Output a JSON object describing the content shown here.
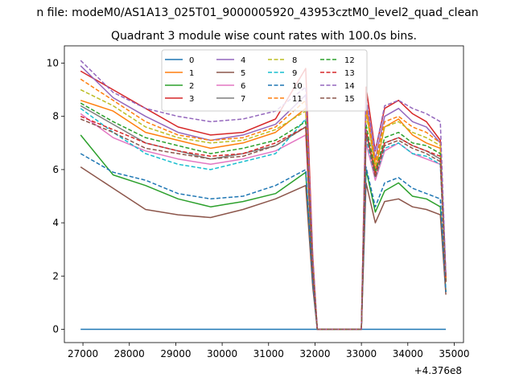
{
  "suptitle": "n file: modeM0/AS1A13_025T01_9000005920_43953cztM0_level2_quad_clean",
  "chart_data": {
    "type": "line",
    "title": "Quadrant 3 module wise count rates with 100.0s bins.",
    "xlabel": "",
    "ylabel": "",
    "x_offset_label": "+4.376e8",
    "xlim": [
      26600,
      35200
    ],
    "ylim": [
      -0.5,
      10.65
    ],
    "grid": false,
    "legend_position": "upper-center",
    "x_ticks": [
      27000,
      28000,
      29000,
      30000,
      31000,
      32000,
      33000,
      34000,
      35000
    ],
    "x_tick_labels": [
      "27000",
      "28000",
      "29000",
      "30000",
      "31000",
      "32000",
      "33000",
      "34000",
      "35000"
    ],
    "y_ticks": [
      0,
      2,
      4,
      6,
      8,
      10
    ],
    "y_tick_labels": [
      "0",
      "2",
      "4",
      "6",
      "8",
      "10"
    ],
    "x": [
      26950,
      27650,
      28350,
      29050,
      29750,
      30450,
      31150,
      31800,
      31950,
      32050,
      33000,
      33100,
      33300,
      33500,
      33800,
      34100,
      34400,
      34700,
      34820
    ],
    "series": [
      {
        "name": "0",
        "color": "#1f77b4",
        "dash": "solid",
        "values": [
          0,
          0,
          0,
          0,
          0,
          0,
          0,
          0,
          0,
          0,
          0,
          0,
          0,
          0,
          0,
          0,
          0,
          0,
          0
        ]
      },
      {
        "name": "1",
        "color": "#ff7f0e",
        "dash": "solid",
        "values": [
          8.6,
          8.2,
          7.4,
          7.1,
          6.8,
          7.0,
          7.4,
          8.3,
          2.5,
          0,
          0,
          8.3,
          6.0,
          7.6,
          7.9,
          7.3,
          7.0,
          6.8,
          1.9
        ]
      },
      {
        "name": "2",
        "color": "#2ca02c",
        "dash": "solid",
        "values": [
          7.3,
          5.8,
          5.4,
          4.9,
          4.6,
          4.8,
          5.1,
          5.9,
          1.8,
          0,
          0,
          6.0,
          4.4,
          5.2,
          5.5,
          5.0,
          4.9,
          4.6,
          1.4
        ]
      },
      {
        "name": "3",
        "color": "#d62728",
        "dash": "solid",
        "values": [
          9.7,
          9.0,
          8.3,
          7.6,
          7.3,
          7.4,
          7.9,
          9.8,
          2.8,
          0,
          0,
          9.1,
          6.7,
          8.3,
          8.6,
          8.1,
          7.8,
          7.1,
          2.0
        ]
      },
      {
        "name": "4",
        "color": "#9467bd",
        "dash": "solid",
        "values": [
          9.9,
          8.7,
          8.0,
          7.4,
          7.1,
          7.3,
          7.7,
          8.8,
          2.6,
          0,
          0,
          8.6,
          6.4,
          8.0,
          8.3,
          7.8,
          7.6,
          7.0,
          2.0
        ]
      },
      {
        "name": "5",
        "color": "#8c564b",
        "dash": "solid",
        "values": [
          6.1,
          5.3,
          4.5,
          4.3,
          4.2,
          4.5,
          4.9,
          5.4,
          1.6,
          0,
          0,
          5.5,
          4.0,
          4.8,
          4.9,
          4.6,
          4.5,
          4.3,
          1.3
        ]
      },
      {
        "name": "6",
        "color": "#e377c2",
        "dash": "solid",
        "values": [
          8.1,
          7.2,
          6.7,
          6.4,
          6.2,
          6.4,
          6.7,
          7.3,
          2.2,
          0,
          0,
          7.0,
          5.6,
          6.7,
          7.0,
          6.6,
          6.4,
          6.2,
          1.8
        ]
      },
      {
        "name": "7",
        "color": "#7f7f7f",
        "dash": "solid",
        "values": [
          8.4,
          7.7,
          7.0,
          6.7,
          6.4,
          6.6,
          6.9,
          7.6,
          2.3,
          0,
          0,
          7.4,
          5.9,
          7.0,
          7.2,
          6.9,
          6.7,
          6.4,
          1.8
        ]
      },
      {
        "name": "8",
        "color": "#bcbd22",
        "dash": "dashed",
        "values": [
          9.0,
          8.4,
          7.6,
          7.2,
          7.0,
          7.1,
          7.5,
          8.2,
          2.5,
          0,
          0,
          8.1,
          6.2,
          7.6,
          7.8,
          7.4,
          7.2,
          6.9,
          1.9
        ]
      },
      {
        "name": "9",
        "color": "#17becf",
        "dash": "dashed",
        "values": [
          8.3,
          7.4,
          6.6,
          6.2,
          6.0,
          6.3,
          6.6,
          7.9,
          2.2,
          0,
          0,
          7.2,
          5.7,
          6.8,
          7.0,
          6.6,
          6.5,
          6.2,
          1.8
        ]
      },
      {
        "name": "10",
        "color": "#1f77b4",
        "dash": "dashed",
        "values": [
          6.6,
          5.9,
          5.6,
          5.1,
          4.9,
          5.0,
          5.4,
          6.0,
          1.8,
          0,
          0,
          6.1,
          4.6,
          5.5,
          5.7,
          5.3,
          5.1,
          4.9,
          1.4
        ]
      },
      {
        "name": "11",
        "color": "#ff7f0e",
        "dash": "dashed",
        "values": [
          9.4,
          8.6,
          7.8,
          7.3,
          7.1,
          7.2,
          7.6,
          8.6,
          2.6,
          0,
          0,
          8.4,
          6.3,
          7.8,
          8.0,
          7.6,
          7.4,
          7.0,
          1.9
        ]
      },
      {
        "name": "12",
        "color": "#2ca02c",
        "dash": "dashed",
        "values": [
          8.5,
          7.8,
          7.2,
          6.9,
          6.6,
          6.8,
          7.1,
          7.8,
          2.3,
          0,
          0,
          7.7,
          5.9,
          7.2,
          7.4,
          7.0,
          6.9,
          6.6,
          1.8
        ]
      },
      {
        "name": "13",
        "color": "#d62728",
        "dash": "dashed",
        "values": [
          8.0,
          7.5,
          7.0,
          6.7,
          6.5,
          6.6,
          7.0,
          7.6,
          2.3,
          0,
          0,
          7.5,
          5.8,
          7.0,
          7.2,
          6.9,
          6.7,
          6.5,
          1.8
        ]
      },
      {
        "name": "14",
        "color": "#9467bd",
        "dash": "dashed",
        "values": [
          10.1,
          8.9,
          8.3,
          8.0,
          7.8,
          7.9,
          8.2,
          9.1,
          2.7,
          0,
          0,
          8.7,
          6.7,
          8.4,
          8.6,
          8.3,
          8.1,
          7.8,
          2.0
        ]
      },
      {
        "name": "15",
        "color": "#8c564b",
        "dash": "dashed",
        "values": [
          7.9,
          7.4,
          6.8,
          6.6,
          6.4,
          6.5,
          6.9,
          7.6,
          2.2,
          0,
          0,
          7.4,
          5.7,
          6.9,
          7.1,
          6.8,
          6.6,
          6.3,
          1.7
        ]
      }
    ]
  }
}
